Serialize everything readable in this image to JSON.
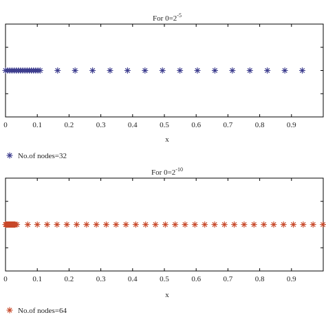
{
  "chart_data": [
    {
      "type": "scatter",
      "title_base": "For 0=2",
      "title_exp": "-5",
      "xlabel": "x",
      "ylabel": "",
      "xlim": [
        0,
        1
      ],
      "ylim": [
        -1,
        1
      ],
      "xticks": [
        "0",
        "0.1",
        "0.2",
        "0.3",
        "0.4",
        "0.5",
        "0.6",
        "0.7",
        "0.8",
        "0.9"
      ],
      "legend": "No.of nodes=32",
      "legend_placement": "bottom-left",
      "marker": "asterisk",
      "color": "#3a3a8c",
      "grid": false,
      "series": [
        {
          "name": "No.of nodes=32",
          "y": 0,
          "x": [
            0.0,
            0.0068,
            0.0136,
            0.0204,
            0.0272,
            0.034,
            0.0408,
            0.0476,
            0.0544,
            0.0612,
            0.068,
            0.0748,
            0.0816,
            0.0884,
            0.0952,
            0.102,
            0.109,
            0.164,
            0.219,
            0.274,
            0.329,
            0.384,
            0.439,
            0.494,
            0.549,
            0.604,
            0.659,
            0.714,
            0.769,
            0.824,
            0.879,
            0.934
          ]
        }
      ]
    },
    {
      "type": "scatter",
      "title_base": "For 0=2",
      "title_exp": "-10",
      "xlabel": "x",
      "ylabel": "",
      "xlim": [
        0,
        1
      ],
      "ylim": [
        -1,
        1
      ],
      "xticks": [
        "0",
        "0.1",
        "0.2",
        "0.3",
        "0.4",
        "0.5",
        "0.6",
        "0.7",
        "0.8",
        "0.9"
      ],
      "legend": "No.of nodes=64",
      "legend_placement": "bottom-left",
      "marker": "asterisk",
      "color": "#c8492a",
      "grid": false,
      "series": [
        {
          "name": "No.of nodes=64",
          "y": 0,
          "x": [
            0.0,
            0.001,
            0.002,
            0.003,
            0.004,
            0.005,
            0.006,
            0.007,
            0.008,
            0.009,
            0.01,
            0.011,
            0.012,
            0.013,
            0.014,
            0.015,
            0.016,
            0.017,
            0.018,
            0.019,
            0.02,
            0.021,
            0.022,
            0.023,
            0.024,
            0.025,
            0.026,
            0.027,
            0.028,
            0.029,
            0.03,
            0.031,
            0.036,
            0.07,
            0.1,
            0.131,
            0.162,
            0.193,
            0.224,
            0.255,
            0.286,
            0.317,
            0.348,
            0.379,
            0.41,
            0.441,
            0.472,
            0.503,
            0.534,
            0.565,
            0.596,
            0.627,
            0.658,
            0.689,
            0.72,
            0.751,
            0.782,
            0.813,
            0.844,
            0.875,
            0.906,
            0.937,
            0.968,
            0.999
          ]
        }
      ]
    }
  ]
}
